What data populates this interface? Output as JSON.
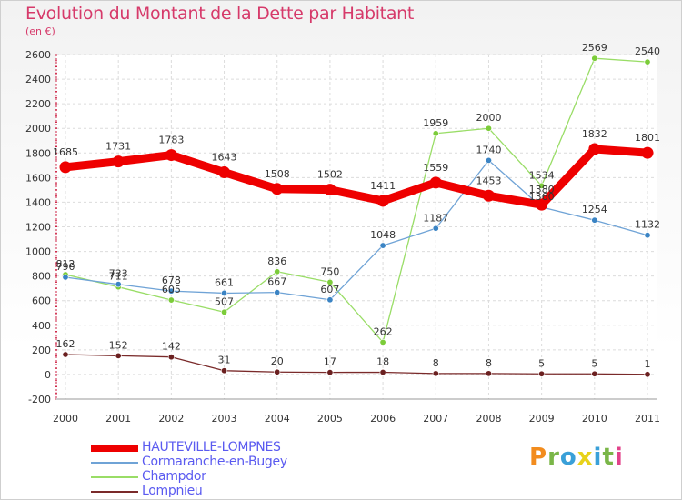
{
  "header": {
    "title": "Evolution du Montant de la Dette par Habitant",
    "unit": "(en €)"
  },
  "chart_data": {
    "type": "line",
    "title": "Evolution du Montant de la Dette par Habitant",
    "subtitle": "(en €)",
    "x": [
      "2000",
      "2001",
      "2002",
      "2003",
      "2004",
      "2005",
      "2006",
      "2007",
      "2008",
      "2009",
      "2010",
      "2011"
    ],
    "ylim": [
      -200,
      2600
    ],
    "yticks": [
      -200,
      0,
      200,
      400,
      600,
      800,
      1000,
      1200,
      1400,
      1600,
      1800,
      2000,
      2200,
      2400,
      2600
    ],
    "grid": true,
    "legend": "bottom-left",
    "series": [
      {
        "name": "HAUTEVILLE-LOMPNES",
        "color": "#ee0000",
        "width": 9,
        "values": [
          1685,
          1731,
          1783,
          1643,
          1508,
          1502,
          1411,
          1559,
          1453,
          1380,
          1832,
          1801
        ]
      },
      {
        "name": "Cormaranche-en-Bugey",
        "color": "#6fa3d6",
        "width": 1.3,
        "dot": "#3b84c4",
        "values": [
          790,
          733,
          678,
          661,
          667,
          607,
          1048,
          1187,
          1740,
          1360,
          1254,
          1132
        ]
      },
      {
        "name": "Champdor",
        "color": "#99dd66",
        "width": 1.3,
        "dot": "#7ccc3a",
        "values": [
          812,
          711,
          605,
          507,
          836,
          750,
          262,
          1959,
          2000,
          1534,
          2569,
          2540
        ]
      },
      {
        "name": "Lompnieu",
        "color": "#7a2a2a",
        "width": 1.3,
        "dot": "#6b2020",
        "values": [
          162,
          152,
          142,
          31,
          20,
          17,
          18,
          8,
          8,
          5,
          5,
          1
        ]
      }
    ]
  },
  "logo": {
    "letters": [
      "P",
      "r",
      "o",
      "x",
      "i",
      "t",
      "i"
    ],
    "colors": [
      "#f28c1e",
      "#7ab648",
      "#3aa0d8",
      "#e8d21a",
      "#3aa0d8",
      "#7ab648",
      "#e2428a"
    ]
  }
}
